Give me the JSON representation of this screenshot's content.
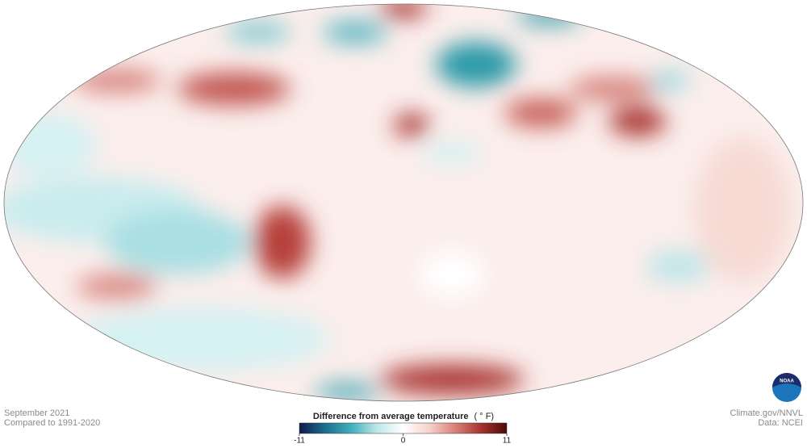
{
  "footer": {
    "date": "September 2021",
    "baseline": "Compared to 1991-2020",
    "credit": "Climate.gov/NNVL",
    "source": "Data: NCEI"
  },
  "logo": "NOAA",
  "legend": {
    "title": "Difference from average temperature",
    "unit": "( ° F)",
    "range": [
      -11,
      11
    ],
    "ticks": [
      -11,
      0,
      11
    ],
    "colors": [
      "#0d1b4c",
      "#1c6f8c",
      "#3fb0bb",
      "#bfe8ea",
      "#ffffff",
      "#f6d3cc",
      "#d9827a",
      "#a8332f",
      "#4d0a0a"
    ]
  }
}
